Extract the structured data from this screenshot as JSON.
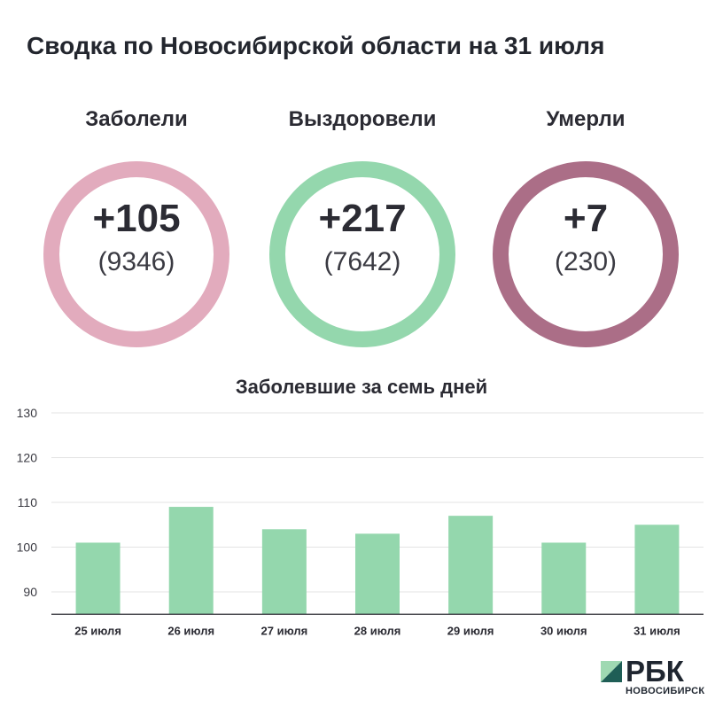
{
  "title": "Сводка по Новосибирской области на 31 июля",
  "stats": {
    "sick": {
      "label": "Заболели",
      "delta": "+105",
      "total": "(9346)",
      "color": "#e2abbd"
    },
    "recovered": {
      "label": "Выздоровели",
      "delta": "+217",
      "total": "(7642)",
      "color": "#94d7ad"
    },
    "dead": {
      "label": "Умерли",
      "delta": "+7",
      "total": "(230)",
      "color": "#ab6e87"
    }
  },
  "chart_data": {
    "type": "bar",
    "title": "Заболевшие за семь дней",
    "categories": [
      "25 июля",
      "26 июля",
      "27 июля",
      "28 июля",
      "29 июля",
      "30 июля",
      "31 июля"
    ],
    "values": [
      101,
      109,
      104,
      103,
      107,
      101,
      105
    ],
    "ylim": [
      85,
      130
    ],
    "yticks": [
      90,
      100,
      110,
      120,
      130
    ],
    "grid": true,
    "bar_color": "#94d7ad"
  },
  "logo": {
    "name": "РБК",
    "subtitle": "НОВОСИБИРСК",
    "colors": [
      "#9fd9b2",
      "#1f5e56"
    ]
  }
}
